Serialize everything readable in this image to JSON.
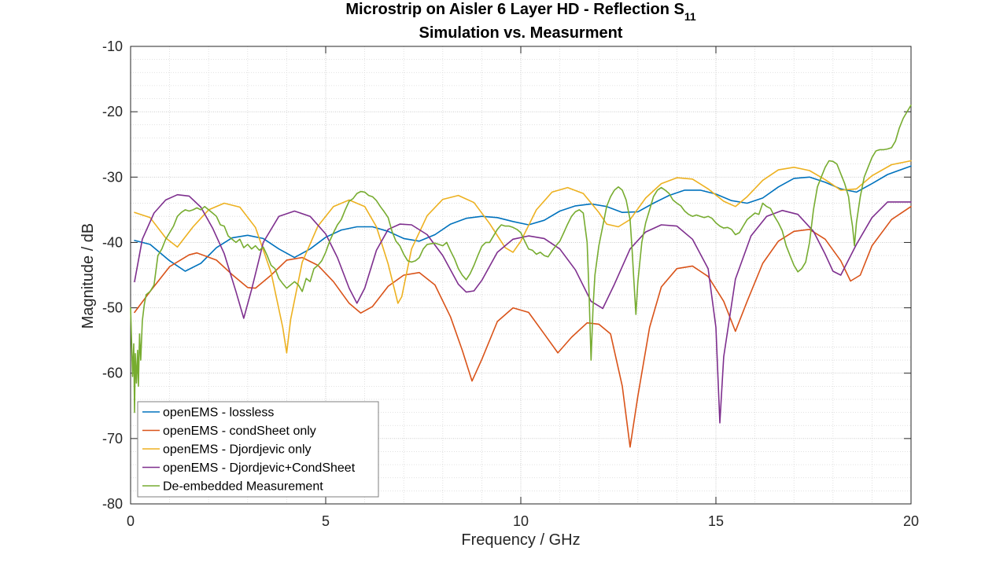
{
  "chart_data": {
    "type": "line",
    "title": {
      "prefix": "Microstrip on Aisler 6 Layer HD - Reflection S",
      "subscript": "11",
      "line2": "Simulation vs. Measurment"
    },
    "xlabel": "Frequency / GHz",
    "ylabel": "Magnitude / dB",
    "xlim": [
      0,
      20
    ],
    "ylim": [
      -80,
      -10
    ],
    "xticks": [
      0,
      5,
      10,
      15,
      20
    ],
    "yticks": [
      -80,
      -70,
      -60,
      -50,
      -40,
      -30,
      -20,
      -10
    ],
    "grid": true,
    "minor_grid": true,
    "legend_position": "bottom-left",
    "series": [
      {
        "name": "openEMS - lossless",
        "color": "#0072BD",
        "x": [
          0.1,
          0.5,
          1.0,
          1.4,
          1.8,
          2.2,
          2.6,
          3.0,
          3.4,
          3.8,
          4.2,
          4.6,
          5.0,
          5.4,
          5.8,
          6.2,
          6.6,
          7.0,
          7.4,
          7.8,
          8.2,
          8.6,
          9.0,
          9.4,
          9.8,
          10.2,
          10.6,
          11.0,
          11.4,
          11.8,
          12.2,
          12.6,
          13.0,
          13.4,
          13.8,
          14.2,
          14.6,
          15.0,
          15.4,
          15.8,
          16.2,
          16.6,
          17.0,
          17.4,
          17.8,
          18.2,
          18.6,
          19.0,
          19.4,
          20.0
        ],
        "y": [
          -39.7,
          -40.3,
          -42.8,
          -44.4,
          -43.2,
          -40.8,
          -39.3,
          -38.9,
          -39.4,
          -41.0,
          -42.3,
          -41.0,
          -39.2,
          -38.1,
          -37.6,
          -37.6,
          -38.3,
          -39.4,
          -39.8,
          -38.8,
          -37.2,
          -36.3,
          -36.0,
          -36.2,
          -36.8,
          -37.3,
          -36.6,
          -35.2,
          -34.4,
          -34.1,
          -34.5,
          -35.4,
          -35.3,
          -34.0,
          -32.8,
          -32.0,
          -32.0,
          -32.6,
          -33.6,
          -34.0,
          -33.2,
          -31.5,
          -30.2,
          -30.0,
          -30.8,
          -31.8,
          -32.3,
          -31.0,
          -29.6,
          -28.3
        ]
      },
      {
        "name": "openEMS - condSheet only",
        "color": "#D95319",
        "x": [
          0.1,
          0.5,
          1.0,
          1.5,
          1.7,
          2.2,
          2.6,
          3.0,
          3.2,
          3.6,
          4.0,
          4.4,
          4.8,
          5.2,
          5.6,
          5.9,
          6.2,
          6.6,
          7.0,
          7.4,
          7.8,
          8.2,
          8.5,
          8.75,
          9.0,
          9.4,
          9.8,
          10.2,
          10.6,
          10.95,
          11.3,
          11.7,
          12.0,
          12.3,
          12.6,
          12.8,
          13.0,
          13.3,
          13.6,
          14.0,
          14.4,
          14.8,
          15.2,
          15.5,
          15.8,
          16.2,
          16.6,
          17.0,
          17.4,
          17.8,
          18.2,
          18.45,
          18.7,
          19.0,
          19.5,
          20.0
        ],
        "y": [
          -50.7,
          -47.5,
          -43.7,
          -41.9,
          -41.6,
          -42.7,
          -44.9,
          -46.9,
          -47.0,
          -45.0,
          -42.7,
          -42.3,
          -43.5,
          -46.0,
          -49.3,
          -50.8,
          -49.8,
          -46.7,
          -45.0,
          -44.6,
          -46.5,
          -51.4,
          -56.5,
          -61.2,
          -57.9,
          -52.1,
          -50.0,
          -50.7,
          -54.0,
          -56.9,
          -54.5,
          -52.3,
          -52.5,
          -54.0,
          -62.0,
          -71.3,
          -63.5,
          -53.0,
          -46.8,
          -44.0,
          -43.6,
          -45.2,
          -49.0,
          -53.6,
          -49.0,
          -43.2,
          -39.8,
          -38.3,
          -38.0,
          -39.5,
          -42.8,
          -45.9,
          -45.0,
          -40.5,
          -36.5,
          -34.5
        ]
      },
      {
        "name": "openEMS - Djordjevic only",
        "color": "#EDB120",
        "x": [
          0.1,
          0.5,
          0.9,
          1.2,
          1.6,
          2.0,
          2.4,
          2.8,
          3.2,
          3.6,
          3.9,
          4.0,
          4.1,
          4.4,
          4.8,
          5.2,
          5.6,
          6.0,
          6.3,
          6.6,
          6.85,
          6.95,
          7.2,
          7.6,
          8.0,
          8.4,
          8.8,
          9.2,
          9.6,
          9.8,
          10.0,
          10.4,
          10.8,
          11.2,
          11.6,
          12.0,
          12.2,
          12.5,
          12.8,
          13.2,
          13.6,
          14.0,
          14.4,
          14.8,
          15.2,
          15.5,
          15.8,
          16.2,
          16.6,
          17.0,
          17.4,
          17.8,
          18.2,
          18.6,
          19.0,
          19.5,
          20.0
        ],
        "y": [
          -35.4,
          -36.2,
          -39.3,
          -40.7,
          -37.6,
          -35.0,
          -34.0,
          -34.6,
          -37.7,
          -44.6,
          -53.0,
          -56.9,
          -51.8,
          -43.0,
          -37.5,
          -34.5,
          -33.5,
          -34.5,
          -37.6,
          -43.3,
          -49.3,
          -48.3,
          -41.0,
          -35.9,
          -33.4,
          -32.8,
          -33.9,
          -37.1,
          -40.8,
          -41.5,
          -39.8,
          -35.0,
          -32.3,
          -31.6,
          -32.5,
          -35.4,
          -37.2,
          -37.6,
          -36.5,
          -33.2,
          -31.0,
          -30.1,
          -30.3,
          -31.8,
          -33.7,
          -34.5,
          -33.0,
          -30.5,
          -28.9,
          -28.5,
          -29.0,
          -30.4,
          -32.0,
          -31.8,
          -29.8,
          -28.1,
          -27.5
        ]
      },
      {
        "name": "openEMS - Djordjevic+CondSheet",
        "color": "#7E2F8E",
        "x": [
          0.1,
          0.3,
          0.6,
          0.9,
          1.2,
          1.5,
          1.8,
          2.1,
          2.4,
          2.7,
          2.9,
          3.1,
          3.4,
          3.8,
          4.2,
          4.6,
          5.0,
          5.3,
          5.6,
          5.8,
          6.0,
          6.3,
          6.6,
          6.9,
          7.2,
          7.6,
          8.0,
          8.4,
          8.6,
          8.8,
          9.0,
          9.4,
          9.8,
          10.2,
          10.6,
          11.0,
          11.4,
          11.8,
          12.1,
          12.4,
          12.8,
          13.2,
          13.6,
          14.0,
          14.4,
          14.8,
          15.0,
          15.1,
          15.2,
          15.5,
          15.9,
          16.3,
          16.7,
          17.1,
          17.5,
          17.8,
          18.0,
          18.2,
          18.6,
          19.0,
          19.4,
          20.0
        ],
        "y": [
          -46.0,
          -39.5,
          -35.5,
          -33.5,
          -32.7,
          -32.9,
          -34.6,
          -37.8,
          -41.7,
          -47.5,
          -51.6,
          -47.2,
          -40.0,
          -36.0,
          -35.2,
          -36.0,
          -38.7,
          -42.3,
          -47.0,
          -49.3,
          -47.0,
          -41.2,
          -38.0,
          -37.2,
          -37.3,
          -38.8,
          -42.0,
          -46.4,
          -47.6,
          -47.4,
          -45.8,
          -41.5,
          -39.5,
          -39.0,
          -39.4,
          -41.0,
          -44.2,
          -49.0,
          -50.1,
          -46.4,
          -41.0,
          -38.4,
          -37.3,
          -37.5,
          -39.5,
          -44.0,
          -53.0,
          -67.6,
          -57.5,
          -45.6,
          -39.0,
          -36.0,
          -35.1,
          -35.7,
          -38.3,
          -41.8,
          -44.4,
          -45.0,
          -40.3,
          -36.2,
          -33.8,
          -33.8
        ]
      },
      {
        "name": "De-embedded Measurement",
        "color": "#77AC30",
        "x": [
          0.0,
          0.05,
          0.08,
          0.1,
          0.12,
          0.15,
          0.18,
          0.2,
          0.23,
          0.26,
          0.3,
          0.35,
          0.4,
          0.5,
          0.6,
          0.7,
          0.8,
          0.9,
          1.0,
          1.1,
          1.2,
          1.3,
          1.4,
          1.5,
          1.6,
          1.7,
          1.8,
          1.9,
          2.0,
          2.1,
          2.2,
          2.3,
          2.4,
          2.5,
          2.6,
          2.7,
          2.8,
          2.9,
          3.0,
          3.1,
          3.2,
          3.3,
          3.4,
          3.5,
          3.6,
          3.7,
          3.8,
          3.9,
          4.0,
          4.1,
          4.2,
          4.3,
          4.4,
          4.5,
          4.6,
          4.7,
          4.8,
          4.9,
          5.0,
          5.1,
          5.2,
          5.3,
          5.4,
          5.5,
          5.6,
          5.7,
          5.8,
          5.9,
          6.0,
          6.1,
          6.2,
          6.3,
          6.4,
          6.5,
          6.6,
          6.7,
          6.8,
          6.9,
          7.0,
          7.1,
          7.2,
          7.3,
          7.4,
          7.5,
          7.6,
          7.7,
          7.8,
          7.9,
          8.0,
          8.1,
          8.2,
          8.3,
          8.4,
          8.5,
          8.6,
          8.7,
          8.8,
          8.9,
          9.0,
          9.1,
          9.2,
          9.3,
          9.4,
          9.5,
          9.6,
          9.7,
          9.8,
          9.9,
          10.0,
          10.1,
          10.2,
          10.3,
          10.4,
          10.5,
          10.6,
          10.7,
          10.8,
          10.9,
          11.0,
          11.1,
          11.2,
          11.3,
          11.4,
          11.5,
          11.6,
          11.7,
          11.75,
          11.8,
          11.85,
          11.9,
          12.0,
          12.1,
          12.2,
          12.3,
          12.4,
          12.5,
          12.6,
          12.7,
          12.8,
          12.85,
          12.9,
          12.95,
          13.0,
          13.1,
          13.2,
          13.3,
          13.4,
          13.5,
          13.6,
          13.7,
          13.8,
          13.9,
          14.0,
          14.1,
          14.2,
          14.3,
          14.4,
          14.5,
          14.6,
          14.7,
          14.8,
          14.9,
          15.0,
          15.1,
          15.2,
          15.3,
          15.4,
          15.5,
          15.6,
          15.7,
          15.8,
          15.9,
          16.0,
          16.1,
          16.2,
          16.3,
          16.4,
          16.5,
          16.6,
          16.7,
          16.8,
          16.9,
          17.0,
          17.1,
          17.2,
          17.3,
          17.4,
          17.5,
          17.6,
          17.7,
          17.8,
          17.9,
          18.0,
          18.1,
          18.2,
          18.3,
          18.4,
          18.45,
          18.5,
          18.55,
          18.6,
          18.7,
          18.8,
          18.9,
          19.0,
          19.1,
          19.2,
          19.3,
          19.4,
          19.5,
          19.6,
          19.7,
          19.8,
          19.9,
          20.0
        ],
        "y": [
          -50.0,
          -60.5,
          -55.5,
          -66.0,
          -57.0,
          -61.5,
          -56.5,
          -62.0,
          -54.0,
          -58.0,
          -52.0,
          -49.5,
          -48.0,
          -47.5,
          -46.5,
          -42.0,
          -41.0,
          -39.5,
          -38.5,
          -37.5,
          -36.0,
          -35.4,
          -35.0,
          -35.2,
          -35.0,
          -34.7,
          -35.0,
          -34.5,
          -35.0,
          -35.5,
          -36.0,
          -37.3,
          -37.5,
          -39.0,
          -39.5,
          -40.0,
          -39.5,
          -40.8,
          -40.3,
          -41.0,
          -40.5,
          -41.2,
          -40.7,
          -42.0,
          -43.5,
          -44.0,
          -45.5,
          -46.3,
          -47.0,
          -46.5,
          -46.0,
          -46.5,
          -47.5,
          -45.5,
          -46.0,
          -44.0,
          -43.5,
          -42.8,
          -41.5,
          -39.8,
          -38.5,
          -37.3,
          -36.5,
          -35.0,
          -33.7,
          -33.3,
          -32.5,
          -32.2,
          -32.3,
          -32.8,
          -33.0,
          -33.6,
          -34.5,
          -35.3,
          -36.2,
          -38.3,
          -39.8,
          -40.5,
          -41.8,
          -42.8,
          -43.0,
          -42.8,
          -42.3,
          -41.0,
          -40.3,
          -40.2,
          -40.1,
          -40.3,
          -40.5,
          -40.0,
          -41.3,
          -42.5,
          -44.0,
          -45.0,
          -45.7,
          -44.8,
          -43.5,
          -42.0,
          -40.6,
          -40.0,
          -40.0,
          -39.0,
          -38.0,
          -37.3,
          -37.5,
          -37.5,
          -37.7,
          -38.0,
          -38.5,
          -39.8,
          -41.0,
          -41.2,
          -41.8,
          -41.5,
          -42.0,
          -42.2,
          -41.3,
          -40.5,
          -39.8,
          -38.5,
          -37.2,
          -36.0,
          -35.3,
          -35.0,
          -35.5,
          -40.0,
          -48.0,
          -58.0,
          -50.0,
          -45.0,
          -40.5,
          -37.5,
          -34.5,
          -33.0,
          -32.0,
          -31.5,
          -32.0,
          -33.5,
          -36.5,
          -41.0,
          -46.0,
          -51.0,
          -46.0,
          -40.0,
          -37.0,
          -35.0,
          -33.0,
          -32.0,
          -31.6,
          -32.0,
          -32.5,
          -33.5,
          -34.0,
          -34.4,
          -35.2,
          -35.7,
          -36.0,
          -35.8,
          -36.0,
          -36.2,
          -36.0,
          -36.3,
          -37.0,
          -37.5,
          -37.8,
          -37.7,
          -38.0,
          -38.8,
          -38.5,
          -37.5,
          -36.5,
          -36.0,
          -35.5,
          -35.7,
          -34.0,
          -34.5,
          -34.8,
          -36.0,
          -37.0,
          -38.2,
          -40.5,
          -42.0,
          -43.5,
          -44.5,
          -44.0,
          -43.0,
          -40.0,
          -35.0,
          -31.5,
          -30.0,
          -28.5,
          -27.5,
          -27.6,
          -28.0,
          -29.5,
          -31.0,
          -33.0,
          -35.5,
          -37.5,
          -40.5,
          -37.0,
          -33.0,
          -30.0,
          -28.5,
          -27.0,
          -26.0,
          -25.8,
          -25.8,
          -25.7,
          -25.5,
          -24.5,
          -22.5,
          -21.0,
          -20.0,
          -19.0
        ]
      }
    ]
  }
}
